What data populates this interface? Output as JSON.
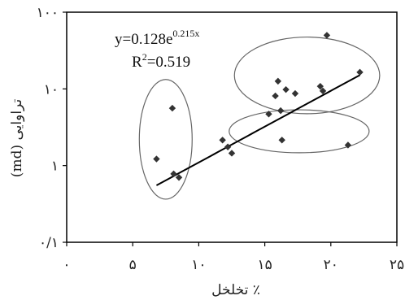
{
  "chart_data": {
    "type": "scatter",
    "title": "",
    "xlabel": "٪ تخلخل",
    "ylabel": "تراوایی (md)",
    "x_scale": "linear",
    "y_scale": "log",
    "xlim": [
      0,
      25
    ],
    "ylim": [
      0.1,
      100
    ],
    "x_ticks": [
      {
        "value": 0,
        "label": "۰"
      },
      {
        "value": 5,
        "label": "۵"
      },
      {
        "value": 10,
        "label": "۱۰"
      },
      {
        "value": 15,
        "label": "۱۵"
      },
      {
        "value": 20,
        "label": "۲۰"
      },
      {
        "value": 25,
        "label": "۲۵"
      }
    ],
    "y_ticks": [
      {
        "value": 0.1,
        "label": "۰/۱"
      },
      {
        "value": 1,
        "label": "۱"
      },
      {
        "value": 10,
        "label": "۱۰"
      },
      {
        "value": 100,
        "label": "۱۰۰"
      }
    ],
    "grid": false,
    "legend": "none",
    "marker": "diamond",
    "marker_color": "#333333",
    "points": [
      {
        "x": 6.8,
        "y": 1.22
      },
      {
        "x": 8.0,
        "y": 5.6
      },
      {
        "x": 8.1,
        "y": 0.78
      },
      {
        "x": 8.5,
        "y": 0.7
      },
      {
        "x": 11.8,
        "y": 2.15
      },
      {
        "x": 12.2,
        "y": 1.75
      },
      {
        "x": 12.5,
        "y": 1.45
      },
      {
        "x": 15.3,
        "y": 4.7
      },
      {
        "x": 15.8,
        "y": 8.1
      },
      {
        "x": 16.0,
        "y": 12.6
      },
      {
        "x": 16.2,
        "y": 5.2
      },
      {
        "x": 16.3,
        "y": 2.15
      },
      {
        "x": 16.6,
        "y": 9.8
      },
      {
        "x": 17.3,
        "y": 8.7
      },
      {
        "x": 19.2,
        "y": 10.8
      },
      {
        "x": 19.4,
        "y": 9.4
      },
      {
        "x": 19.7,
        "y": 50.0
      },
      {
        "x": 21.3,
        "y": 1.85
      },
      {
        "x": 22.2,
        "y": 16.5
      }
    ],
    "trendline": {
      "type": "exponential",
      "a": 0.128,
      "b": 0.215,
      "x_range": [
        6.8,
        22.2
      ],
      "equation_prefix": "y=0.128e",
      "equation_exponent": "0.215x",
      "r2_prefix": "R",
      "r2_sup": "2",
      "r2_suffix": "=0.519"
    },
    "ellipses": [
      {
        "center_x": 7.5,
        "center_y": 2.2,
        "radius_x": 2.0,
        "radius_y_decades": 0.78
      },
      {
        "center_x": 18.2,
        "center_y": 15.0,
        "radius_x": 5.5,
        "radius_y_decades": 0.5
      },
      {
        "center_x": 17.6,
        "center_y": 2.8,
        "radius_x": 5.3,
        "radius_y_decades": 0.28
      }
    ],
    "ellipse_color": "#666666",
    "line_color": "#000000"
  }
}
